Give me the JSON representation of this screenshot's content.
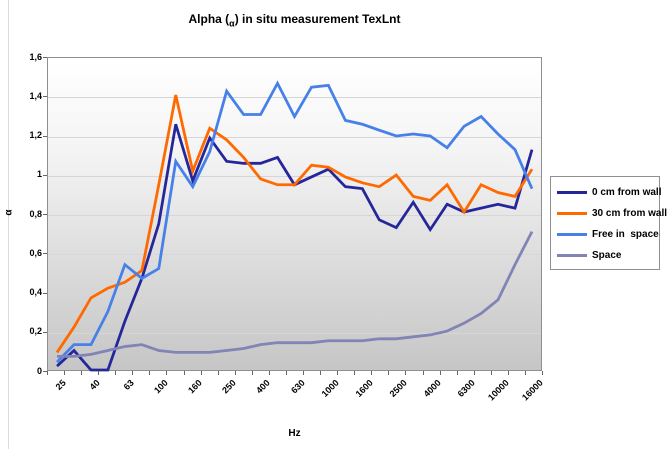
{
  "title": {
    "prefix": "Alpha (",
    "sub": "α",
    "suffix": ") in situ measurement TexLnt"
  },
  "axes": {
    "y_title": "α",
    "x_title": "Hz",
    "y_tick_labels": [
      "1,6",
      "1,4",
      "1,2",
      "1",
      "0,8",
      "0,6",
      "0,4",
      "0,2",
      "0"
    ],
    "x_tick_labels": [
      "25",
      "40",
      "63",
      "100",
      "160",
      "250",
      "400",
      "630",
      "1000",
      "1600",
      "2500",
      "4000",
      "6300",
      "10000",
      "16000"
    ]
  },
  "legend": {
    "items": [
      {
        "label": "0 cm from wall",
        "color": "#26269B"
      },
      {
        "label": "30 cm from wall",
        "color": "#FF6A00"
      },
      {
        "label": "Free in  space",
        "color": "#4680E8"
      },
      {
        "label": "Space",
        "color": "#8184B4"
      }
    ]
  },
  "colors": {
    "plot_border": "#8f8f8f",
    "gridline": "#d6d6d6",
    "tick": "#666666",
    "plot_bg_top": "#ffffff",
    "plot_bg_bottom": "#c6c6c6"
  },
  "chart_data": {
    "type": "line",
    "title": "Alpha (α) in situ measurement TexLnt",
    "xlabel": "Hz",
    "ylabel": "α",
    "ylim": [
      0,
      1.6
    ],
    "y_tick_step": 0.2,
    "decimal_separator": ",",
    "grid": true,
    "legend_position": "right",
    "plot_background": "white-to-gray vertical gradient",
    "x_categories": [
      25,
      31.5,
      40,
      50,
      63,
      80,
      100,
      125,
      160,
      200,
      250,
      315,
      400,
      500,
      630,
      800,
      1000,
      1250,
      1600,
      2000,
      2500,
      3150,
      4000,
      5000,
      6300,
      8000,
      10000,
      12500,
      16000
    ],
    "x_axis_labels_shown": [
      "25",
      "40",
      "63",
      "100",
      "160",
      "250",
      "400",
      "630",
      "1000",
      "1600",
      "2500",
      "4000",
      "6300",
      "10000",
      "16000"
    ],
    "series": [
      {
        "name": "0 cm from wall",
        "color": "#26269B",
        "values": [
          0.02,
          0.1,
          0.0,
          0.0,
          0.25,
          0.47,
          0.75,
          1.26,
          0.97,
          1.19,
          1.07,
          1.06,
          1.06,
          1.09,
          0.95,
          0.99,
          1.03,
          0.94,
          0.93,
          0.77,
          0.73,
          0.86,
          0.72,
          0.85,
          0.81,
          0.83,
          0.85,
          0.83,
          1.13
        ]
      },
      {
        "name": "30 cm from wall",
        "color": "#FF6A00",
        "values": [
          0.09,
          0.22,
          0.37,
          0.42,
          0.45,
          0.51,
          0.95,
          1.41,
          1.02,
          1.24,
          1.18,
          1.09,
          0.98,
          0.95,
          0.95,
          1.05,
          1.04,
          0.99,
          0.96,
          0.94,
          1.0,
          0.89,
          0.87,
          0.95,
          0.81,
          0.95,
          0.91,
          0.89,
          1.03
        ]
      },
      {
        "name": "Free in  space",
        "color": "#4680E8",
        "values": [
          0.04,
          0.13,
          0.13,
          0.3,
          0.54,
          0.47,
          0.52,
          1.07,
          0.94,
          1.12,
          1.43,
          1.31,
          1.31,
          1.47,
          1.3,
          1.45,
          1.46,
          1.28,
          1.26,
          1.23,
          1.2,
          1.21,
          1.2,
          1.14,
          1.25,
          1.3,
          1.21,
          1.13,
          0.93
        ]
      },
      {
        "name": "Space",
        "color": "#8184B4",
        "values": [
          0.07,
          0.07,
          0.08,
          0.1,
          0.12,
          0.13,
          0.1,
          0.09,
          0.09,
          0.09,
          0.1,
          0.11,
          0.13,
          0.14,
          0.14,
          0.14,
          0.15,
          0.15,
          0.15,
          0.16,
          0.16,
          0.17,
          0.18,
          0.2,
          0.24,
          0.29,
          0.36,
          0.54,
          0.71
        ]
      }
    ]
  }
}
